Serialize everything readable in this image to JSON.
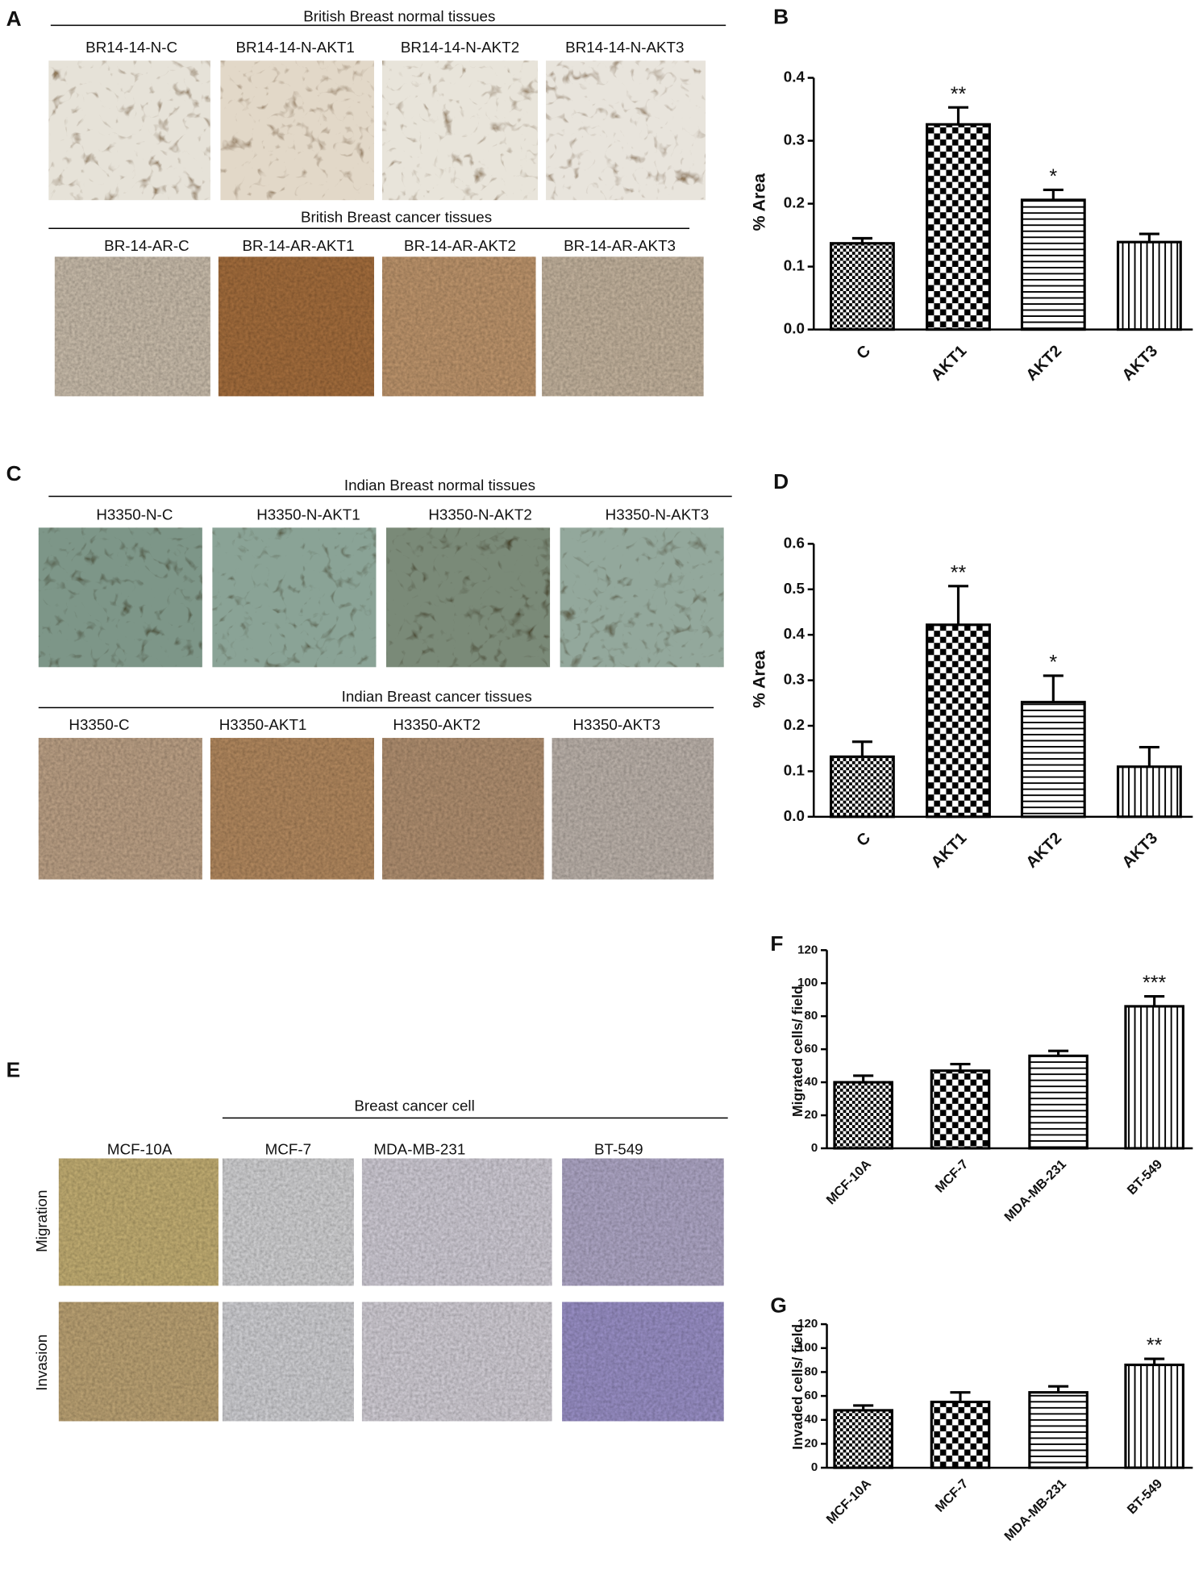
{
  "figure": {
    "A": {
      "label": "A",
      "normal_title": "British Breast normal tissues",
      "normal_samples": [
        "BR14-14-N-C",
        "BR14-14-N-AKT1",
        "BR14-14-N-AKT2",
        "BR14-14-N-AKT3"
      ],
      "cancer_title": "British Breast cancer tissues",
      "cancer_samples": [
        "BR-14-AR-C",
        "BR-14-AR-AKT1",
        "BR-14-AR-AKT2",
        "BR-14-AR-AKT3"
      ]
    },
    "C": {
      "label": "C",
      "normal_title": "Indian Breast normal tissues",
      "normal_samples": [
        "H3350-N-C",
        "H3350-N-AKT1",
        "H3350-N-AKT2",
        "H3350-N-AKT3"
      ],
      "cancer_title": "Indian Breast cancer tissues",
      "cancer_samples": [
        "H3350-C",
        "H3350-AKT1",
        "H3350-AKT2",
        "H3350-AKT3"
      ]
    },
    "E": {
      "label": "E",
      "group_title": "Breast cancer cell",
      "cell_lines": [
        "MCF-10A",
        "MCF-7",
        "MDA-MB-231",
        "BT-549"
      ],
      "rows": [
        "Migration",
        "Invasion"
      ]
    }
  },
  "chart_data": [
    {
      "type": "bar",
      "label": "B",
      "y_label": "% Area",
      "categories": [
        "C",
        "AKT1",
        "AKT2",
        "AKT3"
      ],
      "values": [
        0.137,
        0.326,
        0.206,
        0.139
      ],
      "errors": [
        0.008,
        0.027,
        0.016,
        0.013
      ],
      "annotations": [
        null,
        "**",
        "*",
        null
      ],
      "color": "#000000",
      "patterns": [
        "checker-small",
        "checker",
        "hlines",
        "vlines"
      ],
      "ylim": [
        0,
        0.4
      ],
      "yticks": [
        {
          "value": 0,
          "label": "0.0"
        },
        0.1,
        0.2,
        0.3,
        0.4
      ]
    },
    {
      "type": "bar",
      "label": "D",
      "y_label": "% Area",
      "categories": [
        "C",
        "AKT1",
        "AKT2",
        "AKT3"
      ],
      "values": [
        0.132,
        0.422,
        0.252,
        0.11
      ],
      "errors": [
        0.033,
        0.085,
        0.058,
        0.043
      ],
      "annotations": [
        null,
        "**",
        "*",
        null
      ],
      "color": "#000000",
      "patterns": [
        "checker-small",
        "checker",
        "hlines",
        "vlines"
      ],
      "ylim": [
        0,
        0.6
      ],
      "yticks": [
        {
          "value": 0,
          "label": "0.0"
        },
        0.1,
        0.2,
        0.3,
        0.4,
        0.5,
        0.6
      ]
    },
    {
      "type": "bar",
      "label": "F",
      "y_label": "Migrated cells/ field",
      "categories": [
        "MCF-10A",
        "MCF-7",
        "MDA-MB-231",
        "BT-549"
      ],
      "values": [
        40,
        47,
        56,
        86
      ],
      "errors": [
        4,
        4,
        3,
        6
      ],
      "annotations": [
        null,
        null,
        null,
        "***"
      ],
      "color": "#000000",
      "patterns": [
        "checker-small",
        "checker",
        "hlines",
        "vlines"
      ],
      "ylim": [
        0,
        120
      ],
      "yticks": [
        0,
        20,
        40,
        60,
        80,
        100,
        120
      ]
    },
    {
      "type": "bar",
      "label": "G",
      "y_label": "Invaded cells/ field",
      "categories": [
        "MCF-10A",
        "MCF-7",
        "MDA-MB-231",
        "BT-549"
      ],
      "values": [
        48,
        55,
        63,
        86
      ],
      "errors": [
        4,
        8,
        5,
        5
      ],
      "annotations": [
        null,
        null,
        null,
        "**"
      ],
      "color": "#000000",
      "patterns": [
        "checker-small",
        "checker",
        "hlines",
        "vlines"
      ],
      "ylim": [
        0,
        120
      ],
      "yticks": [
        0,
        20,
        40,
        60,
        80,
        100,
        120
      ]
    }
  ]
}
